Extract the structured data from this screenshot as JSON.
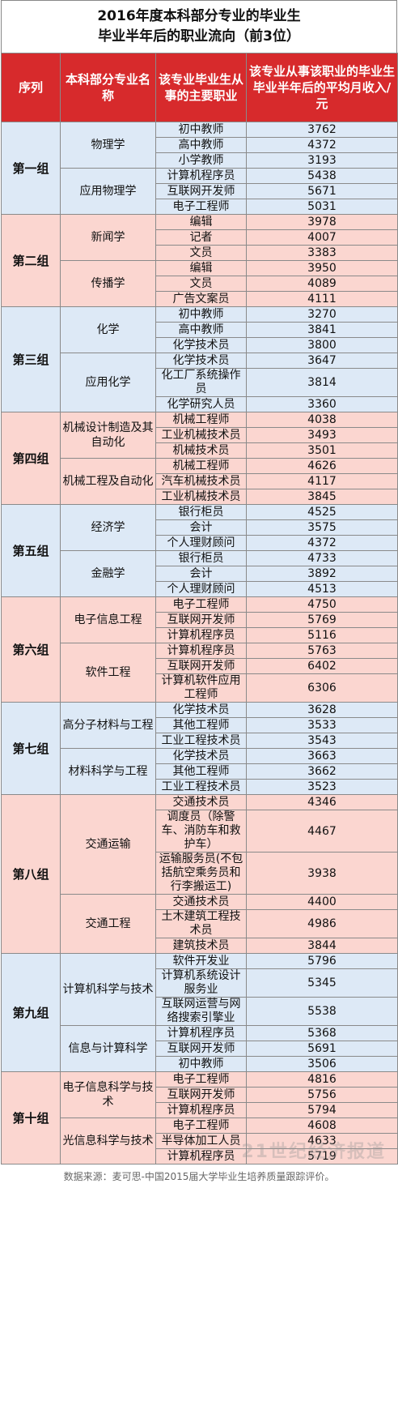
{
  "title_line1": "2016年度本科部分专业的毕业生",
  "title_line2": "毕业半年后的职业流向（前3位）",
  "headers": {
    "group": "序列",
    "major": "本科部分专业名称",
    "job": "该专业毕业生从事的主要职业",
    "salary": "该专业从事该职业的毕业生毕业半年后的平均月收入/元"
  },
  "groups": [
    {
      "name": "第一组",
      "majors": [
        {
          "name": "物理学",
          "jobs": [
            [
              "初中教师",
              "3762"
            ],
            [
              "高中教师",
              "4372"
            ],
            [
              "小学教师",
              "3193"
            ]
          ]
        },
        {
          "name": "应用物理学",
          "jobs": [
            [
              "计算机程序员",
              "5438"
            ],
            [
              "互联网开发师",
              "5671"
            ],
            [
              "电子工程师",
              "5031"
            ]
          ]
        }
      ]
    },
    {
      "name": "第二组",
      "majors": [
        {
          "name": "新闻学",
          "jobs": [
            [
              "编辑",
              "3978"
            ],
            [
              "记者",
              "4007"
            ],
            [
              "文员",
              "3383"
            ]
          ]
        },
        {
          "name": "传播学",
          "jobs": [
            [
              "编辑",
              "3950"
            ],
            [
              "文员",
              "4089"
            ],
            [
              "广告文案员",
              "4111"
            ]
          ]
        }
      ]
    },
    {
      "name": "第三组",
      "majors": [
        {
          "name": "化学",
          "jobs": [
            [
              "初中教师",
              "3270"
            ],
            [
              "高中教师",
              "3841"
            ],
            [
              "化学技术员",
              "3800"
            ]
          ]
        },
        {
          "name": "应用化学",
          "jobs": [
            [
              "化学技术员",
              "3647"
            ],
            [
              "化工厂系统操作员",
              "3814"
            ],
            [
              "化学研究人员",
              "3360"
            ]
          ]
        }
      ]
    },
    {
      "name": "第四组",
      "majors": [
        {
          "name": "机械设计制造及其自动化",
          "jobs": [
            [
              "机械工程师",
              "4038"
            ],
            [
              "工业机械技术员",
              "3493"
            ],
            [
              "机械技术员",
              "3501"
            ]
          ]
        },
        {
          "name": "机械工程及自动化",
          "jobs": [
            [
              "机械工程师",
              "4626"
            ],
            [
              "汽车机械技术员",
              "4117"
            ],
            [
              "工业机械技术员",
              "3845"
            ]
          ]
        }
      ]
    },
    {
      "name": "第五组",
      "majors": [
        {
          "name": "经济学",
          "jobs": [
            [
              "银行柜员",
              "4525"
            ],
            [
              "会计",
              "3575"
            ],
            [
              "个人理财顾问",
              "4372"
            ]
          ]
        },
        {
          "name": "金融学",
          "jobs": [
            [
              "银行柜员",
              "4733"
            ],
            [
              "会计",
              "3892"
            ],
            [
              "个人理财顾问",
              "4513"
            ]
          ]
        }
      ]
    },
    {
      "name": "第六组",
      "majors": [
        {
          "name": "电子信息工程",
          "jobs": [
            [
              "电子工程师",
              "4750"
            ],
            [
              "互联网开发师",
              "5769"
            ],
            [
              "计算机程序员",
              "5116"
            ]
          ]
        },
        {
          "name": "软件工程",
          "jobs": [
            [
              "计算机程序员",
              "5763"
            ],
            [
              "互联网开发师",
              "6402"
            ],
            [
              "计算机软件应用工程师",
              "6306"
            ]
          ]
        }
      ]
    },
    {
      "name": "第七组",
      "majors": [
        {
          "name": "高分子材料与工程",
          "jobs": [
            [
              "化学技术员",
              "3628"
            ],
            [
              "其他工程师",
              "3533"
            ],
            [
              "工业工程技术员",
              "3543"
            ]
          ]
        },
        {
          "name": "材料科学与工程",
          "jobs": [
            [
              "化学技术员",
              "3663"
            ],
            [
              "其他工程师",
              "3662"
            ],
            [
              "工业工程技术员",
              "3523"
            ]
          ]
        }
      ]
    },
    {
      "name": "第八组",
      "majors": [
        {
          "name": "交通运输",
          "jobs": [
            [
              "交通技术员",
              "4346"
            ],
            [
              "调度员（除警车、消防车和救护车）",
              "4467"
            ],
            [
              "运输服务员(不包括航空乘务员和行李搬运工)",
              "3938"
            ]
          ]
        },
        {
          "name": "交通工程",
          "jobs": [
            [
              "交通技术员",
              "4400"
            ],
            [
              "土木建筑工程技术员",
              "4986"
            ],
            [
              "建筑技术员",
              "3844"
            ]
          ]
        }
      ]
    },
    {
      "name": "第九组",
      "majors": [
        {
          "name": "计算机科学与技术",
          "jobs": [
            [
              "软件开发业",
              "5796"
            ],
            [
              "计算机系统设计服务业",
              "5345"
            ],
            [
              "互联网运营与网络搜索引擎业",
              "5538"
            ]
          ]
        },
        {
          "name": "信息与计算科学",
          "jobs": [
            [
              "计算机程序员",
              "5368"
            ],
            [
              "互联网开发师",
              "5691"
            ],
            [
              "初中教师",
              "3506"
            ]
          ]
        }
      ]
    },
    {
      "name": "第十组",
      "majors": [
        {
          "name": "电子信息科学与技术",
          "jobs": [
            [
              "电子工程师",
              "4816"
            ],
            [
              "互联网开发师",
              "5756"
            ],
            [
              "计算机程序员",
              "5794"
            ]
          ]
        },
        {
          "name": "光信息科学与技术",
          "jobs": [
            [
              "电子工程师",
              "4608"
            ],
            [
              "半导体加工人员",
              "4633"
            ],
            [
              "计算机程序员",
              "5719"
            ]
          ]
        }
      ]
    }
  ],
  "footer": "数据来源：麦可思-中国2015届大学毕业生培养质量跟踪评价。",
  "watermark": "21世纪经济报道",
  "colors": {
    "header": "#d72a2c",
    "blue_band": "#dde9f6",
    "pink_band": "#fbd6d0"
  }
}
